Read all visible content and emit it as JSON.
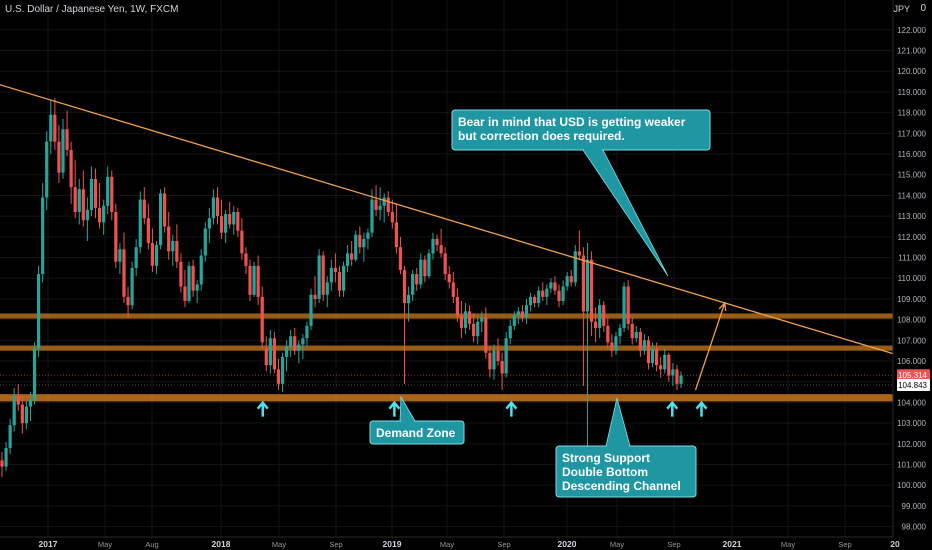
{
  "header": {
    "symbol_title": "U.S. Dollar / Japanese Yen, 1W, FXCM",
    "currency": "JPY",
    "settings_glyph": "0"
  },
  "chart_data": {
    "type": "candlestick",
    "title": "U.S. Dollar / Japanese Yen, 1W, FXCM",
    "ylim": [
      97.5,
      123.2
    ],
    "y_ticks": [
      98,
      99,
      100,
      101,
      102,
      103,
      104,
      105,
      106,
      107,
      108,
      109,
      110,
      111,
      112,
      113,
      114,
      115,
      116,
      117,
      118,
      119,
      120,
      121,
      122
    ],
    "y_tick_labels": [
      "98.000",
      "99.000",
      "100.000",
      "101.000",
      "102.000",
      "103.000",
      "104.000",
      "105.000",
      "106.000",
      "107.000",
      "108.000",
      "109.000",
      "110.000",
      "111.000",
      "112.000",
      "113.000",
      "114.000",
      "115.000",
      "116.000",
      "117.000",
      "118.000",
      "119.000",
      "120.000",
      "121.000",
      "122.000"
    ],
    "x_ticks": [
      "2017",
      "May",
      "Aug",
      "2018",
      "May",
      "Sep",
      "2019",
      "May",
      "Sep",
      "2020",
      "May",
      "Sep",
      "2021",
      "May",
      "Sep",
      "20"
    ],
    "x_ticks_bold": [
      true,
      false,
      false,
      true,
      false,
      false,
      true,
      false,
      false,
      true,
      false,
      false,
      true,
      false,
      false,
      true
    ],
    "price_labels": {
      "last": "105.314",
      "level": "104.843"
    },
    "zones": [
      {
        "name": "resistance-zone-upper",
        "y1": 108.05,
        "y2": 108.3,
        "color": "#b26d1c"
      },
      {
        "name": "resistance-zone-lower",
        "y1": 106.5,
        "y2": 106.75,
        "color": "#b26d1c"
      },
      {
        "name": "demand-zone",
        "y1": 104.05,
        "y2": 104.4,
        "color": "#c8771c"
      }
    ],
    "trendline": {
      "from": [
        "2016-09",
        119.5
      ],
      "to": [
        "2021-12",
        106.1
      ],
      "color": "#f0a04b"
    },
    "projection": {
      "from": [
        "2020-09",
        104.6
      ],
      "to": [
        "2020-11",
        108.8
      ],
      "color": "#f0a04b"
    },
    "up_arrows": [
      {
        "date": "2018-03",
        "y": 103.7
      },
      {
        "date": "2018-12",
        "y": 103.7
      },
      {
        "date": "2019-08",
        "y": 103.7
      },
      {
        "date": "2020-07",
        "y": 103.7
      },
      {
        "date": "2020-09",
        "y": 103.7
      }
    ],
    "callouts": [
      {
        "text": [
          "Bear in mind that USD is getting weaker",
          "but correction does required."
        ]
      },
      {
        "text": [
          "Demand Zone"
        ]
      },
      {
        "text": [
          "Strong Support",
          "Double Bottom",
          "Descending Channel"
        ]
      }
    ],
    "colors": {
      "up": "#26a69a",
      "down": "#ef5350",
      "callout_bg": "#1f97a2",
      "callout_border": "#7ddde6",
      "arrow": "#4de1f0",
      "last_price_bg": "#ef5350"
    },
    "candles": [
      [
        101.2,
        101.6,
        100.4,
        100.9
      ],
      [
        100.9,
        102.1,
        100.7,
        101.8
      ],
      [
        101.8,
        103.2,
        101.5,
        102.9
      ],
      [
        102.9,
        104.7,
        102.6,
        104.3
      ],
      [
        104.3,
        104.9,
        103.6,
        103.9
      ],
      [
        103.9,
        104.4,
        102.5,
        103.0
      ],
      [
        103.0,
        104.1,
        102.7,
        103.8
      ],
      [
        103.8,
        104.5,
        103.1,
        104.1
      ],
      [
        104.1,
        106.9,
        103.9,
        106.6
      ],
      [
        106.6,
        110.6,
        106.2,
        110.2
      ],
      [
        110.2,
        114.6,
        109.8,
        113.9
      ],
      [
        113.9,
        117.1,
        113.3,
        116.6
      ],
      [
        116.6,
        118.6,
        116.0,
        117.9
      ],
      [
        117.9,
        118.7,
        116.2,
        116.6
      ],
      [
        116.6,
        117.4,
        114.6,
        115.1
      ],
      [
        115.1,
        117.7,
        114.8,
        117.2
      ],
      [
        117.2,
        118.1,
        115.9,
        116.2
      ],
      [
        116.2,
        116.6,
        113.6,
        114.4
      ],
      [
        114.4,
        115.7,
        112.9,
        113.2
      ],
      [
        113.2,
        114.8,
        112.6,
        114.3
      ],
      [
        114.3,
        115.2,
        112.5,
        112.8
      ],
      [
        112.8,
        113.9,
        111.8,
        113.3
      ],
      [
        113.3,
        115.4,
        113.0,
        114.8
      ],
      [
        114.8,
        115.3,
        112.9,
        113.4
      ],
      [
        113.4,
        114.6,
        112.4,
        112.7
      ],
      [
        112.7,
        113.8,
        112.1,
        113.5
      ],
      [
        113.5,
        115.4,
        113.1,
        114.9
      ],
      [
        114.9,
        115.2,
        112.8,
        113.2
      ],
      [
        113.2,
        113.6,
        110.5,
        110.8
      ],
      [
        110.8,
        111.7,
        110.2,
        111.4
      ],
      [
        111.4,
        112.2,
        108.8,
        109.1
      ],
      [
        109.1,
        109.6,
        108.1,
        108.7
      ],
      [
        108.7,
        110.8,
        108.5,
        110.5
      ],
      [
        110.5,
        111.9,
        110.1,
        111.5
      ],
      [
        111.5,
        114.2,
        111.2,
        113.8
      ],
      [
        113.8,
        114.4,
        112.6,
        112.9
      ],
      [
        112.9,
        113.6,
        111.4,
        111.7
      ],
      [
        111.7,
        112.4,
        110.3,
        110.6
      ],
      [
        110.6,
        111.8,
        110.2,
        111.6
      ],
      [
        111.6,
        114.3,
        111.4,
        114.1
      ],
      [
        114.1,
        114.4,
        112.2,
        112.5
      ],
      [
        112.5,
        113.2,
        110.9,
        111.3
      ],
      [
        111.3,
        112.1,
        110.6,
        111.8
      ],
      [
        111.8,
        112.6,
        110.5,
        110.8
      ],
      [
        110.8,
        111.2,
        109.3,
        109.6
      ],
      [
        109.6,
        110.4,
        108.6,
        108.9
      ],
      [
        108.9,
        110.8,
        108.8,
        110.6
      ],
      [
        110.6,
        110.9,
        109.1,
        109.4
      ],
      [
        109.4,
        109.9,
        108.8,
        109.7
      ],
      [
        109.7,
        111.4,
        109.4,
        111.1
      ],
      [
        111.1,
        112.7,
        110.8,
        112.4
      ],
      [
        112.4,
        113.4,
        111.7,
        112.9
      ],
      [
        112.9,
        114.3,
        112.6,
        113.9
      ],
      [
        113.9,
        114.4,
        112.6,
        113.0
      ],
      [
        113.0,
        113.8,
        111.9,
        112.2
      ],
      [
        112.2,
        113.3,
        111.7,
        113.1
      ],
      [
        113.1,
        113.7,
        112.4,
        112.6
      ],
      [
        112.6,
        113.5,
        112.1,
        113.2
      ],
      [
        113.2,
        113.4,
        112.0,
        112.3
      ],
      [
        112.3,
        112.9,
        110.9,
        111.2
      ],
      [
        111.2,
        111.5,
        110.2,
        110.6
      ],
      [
        110.6,
        110.9,
        108.9,
        109.2
      ],
      [
        109.2,
        110.8,
        109.1,
        110.6
      ],
      [
        110.6,
        111.1,
        108.7,
        109.1
      ],
      [
        109.1,
        109.6,
        106.6,
        106.9
      ],
      [
        106.6,
        107.2,
        105.5,
        105.8
      ],
      [
        105.8,
        107.5,
        105.4,
        107.1
      ],
      [
        107.1,
        107.4,
        105.4,
        105.6
      ],
      [
        105.6,
        106.1,
        104.6,
        104.9
      ],
      [
        104.9,
        106.4,
        104.5,
        106.2
      ],
      [
        106.2,
        107.0,
        105.5,
        106.7
      ],
      [
        106.7,
        107.5,
        106.2,
        107.2
      ],
      [
        107.2,
        107.6,
        106.3,
        106.5
      ],
      [
        106.5,
        107.0,
        105.9,
        106.8
      ],
      [
        106.8,
        107.3,
        106.1,
        107.1
      ],
      [
        107.1,
        107.9,
        106.7,
        107.7
      ],
      [
        107.7,
        109.5,
        107.5,
        109.2
      ],
      [
        109.2,
        110.1,
        108.6,
        109.0
      ],
      [
        109.0,
        111.4,
        108.8,
        111.1
      ],
      [
        111.1,
        111.3,
        108.9,
        109.2
      ],
      [
        109.2,
        110.1,
        108.6,
        109.8
      ],
      [
        109.8,
        110.9,
        109.4,
        110.5
      ],
      [
        110.5,
        111.2,
        109.8,
        110.3
      ],
      [
        110.3,
        110.6,
        109.1,
        109.4
      ],
      [
        109.4,
        110.8,
        109.1,
        110.6
      ],
      [
        110.6,
        111.6,
        110.3,
        111.2
      ],
      [
        111.2,
        111.8,
        110.6,
        110.9
      ],
      [
        110.9,
        112.3,
        110.8,
        112.1
      ],
      [
        112.1,
        112.5,
        111.2,
        111.5
      ],
      [
        111.5,
        112.2,
        110.8,
        111.9
      ],
      [
        111.9,
        112.4,
        111.4,
        112.2
      ],
      [
        112.2,
        114.3,
        112.0,
        113.8
      ],
      [
        113.8,
        114.5,
        113.0,
        113.3
      ],
      [
        113.3,
        114.4,
        112.8,
        113.5
      ],
      [
        113.5,
        114.1,
        112.7,
        113.9
      ],
      [
        113.9,
        114.2,
        113.0,
        113.2
      ],
      [
        113.2,
        113.8,
        112.4,
        112.7
      ],
      [
        112.7,
        113.6,
        111.2,
        111.5
      ],
      [
        111.5,
        112.0,
        110.2,
        110.4
      ],
      [
        110.4,
        110.6,
        104.9,
        108.8
      ],
      [
        108.8,
        109.6,
        107.9,
        109.2
      ],
      [
        109.2,
        110.4,
        108.9,
        110.2
      ],
      [
        110.2,
        110.5,
        109.4,
        109.7
      ],
      [
        109.7,
        111.2,
        109.5,
        110.9
      ],
      [
        110.9,
        111.1,
        109.8,
        110.1
      ],
      [
        110.1,
        111.4,
        110.0,
        111.2
      ],
      [
        111.2,
        112.2,
        110.9,
        111.9
      ],
      [
        111.9,
        112.1,
        111.3,
        111.6
      ],
      [
        111.6,
        112.4,
        111.0,
        111.2
      ],
      [
        111.2,
        111.5,
        109.9,
        110.2
      ],
      [
        110.2,
        110.6,
        109.5,
        109.8
      ],
      [
        109.8,
        110.3,
        108.8,
        109.1
      ],
      [
        109.1,
        109.5,
        107.9,
        108.2
      ],
      [
        108.2,
        108.9,
        107.1,
        107.6
      ],
      [
        107.6,
        108.8,
        107.3,
        108.4
      ],
      [
        108.4,
        108.7,
        107.5,
        107.8
      ],
      [
        107.8,
        108.3,
        106.9,
        107.2
      ],
      [
        107.2,
        108.1,
        106.8,
        107.9
      ],
      [
        107.9,
        108.4,
        107.4,
        108.1
      ],
      [
        108.1,
        108.6,
        106.1,
        106.4
      ],
      [
        106.4,
        106.7,
        105.2,
        105.6
      ],
      [
        105.6,
        106.8,
        105.1,
        106.5
      ],
      [
        106.5,
        107.1,
        105.8,
        106.0
      ],
      [
        106.0,
        106.4,
        104.6,
        105.4
      ],
      [
        105.4,
        107.4,
        105.2,
        107.1
      ],
      [
        107.1,
        108.0,
        106.8,
        107.7
      ],
      [
        107.7,
        108.4,
        107.5,
        108.2
      ],
      [
        108.2,
        108.6,
        107.8,
        108.4
      ],
      [
        108.4,
        108.7,
        107.9,
        108.1
      ],
      [
        108.1,
        109.0,
        107.8,
        108.7
      ],
      [
        108.7,
        109.3,
        108.4,
        109.1
      ],
      [
        109.1,
        109.2,
        108.6,
        108.8
      ],
      [
        108.8,
        109.6,
        108.6,
        109.4
      ],
      [
        109.4,
        109.8,
        108.9,
        109.1
      ],
      [
        109.1,
        109.7,
        108.7,
        109.5
      ],
      [
        109.5,
        110.0,
        109.3,
        109.8
      ],
      [
        109.8,
        110.1,
        109.2,
        109.4
      ],
      [
        109.4,
        109.7,
        108.6,
        108.9
      ],
      [
        108.9,
        109.9,
        108.7,
        109.6
      ],
      [
        109.6,
        110.3,
        109.4,
        110.1
      ],
      [
        110.1,
        110.4,
        109.6,
        109.8
      ],
      [
        109.8,
        111.6,
        109.6,
        111.3
      ],
      [
        111.3,
        112.3,
        110.9,
        111.1
      ],
      [
        111.1,
        111.5,
        104.8,
        108.4
      ],
      [
        108.4,
        111.7,
        101.2,
        110.9
      ],
      [
        110.9,
        111.3,
        107.2,
        107.9
      ],
      [
        107.9,
        108.6,
        106.9,
        107.6
      ],
      [
        107.6,
        109.0,
        107.1,
        108.7
      ],
      [
        108.7,
        108.9,
        107.4,
        107.7
      ],
      [
        107.7,
        108.1,
        106.6,
        106.9
      ],
      [
        106.9,
        107.3,
        106.2,
        106.5
      ],
      [
        106.5,
        107.4,
        106.3,
        107.2
      ],
      [
        107.2,
        107.8,
        106.8,
        107.6
      ],
      [
        107.6,
        109.8,
        107.4,
        109.6
      ],
      [
        109.6,
        109.9,
        107.5,
        107.8
      ],
      [
        107.8,
        108.1,
        106.8,
        107.1
      ],
      [
        107.1,
        107.7,
        106.9,
        107.4
      ],
      [
        107.4,
        107.6,
        106.2,
        106.5
      ],
      [
        106.5,
        107.3,
        106.3,
        107.0
      ],
      [
        107.0,
        107.2,
        105.6,
        105.9
      ],
      [
        105.9,
        106.9,
        105.7,
        106.6
      ],
      [
        106.6,
        106.9,
        105.5,
        105.8
      ],
      [
        105.8,
        106.2,
        105.2,
        105.6
      ],
      [
        105.6,
        106.6,
        105.4,
        106.3
      ],
      [
        106.3,
        106.4,
        105.0,
        105.3
      ],
      [
        105.3,
        105.9,
        104.8,
        105.6
      ],
      [
        105.6,
        105.8,
        104.6,
        104.9
      ],
      [
        104.9,
        105.5,
        104.7,
        105.3
      ]
    ]
  }
}
